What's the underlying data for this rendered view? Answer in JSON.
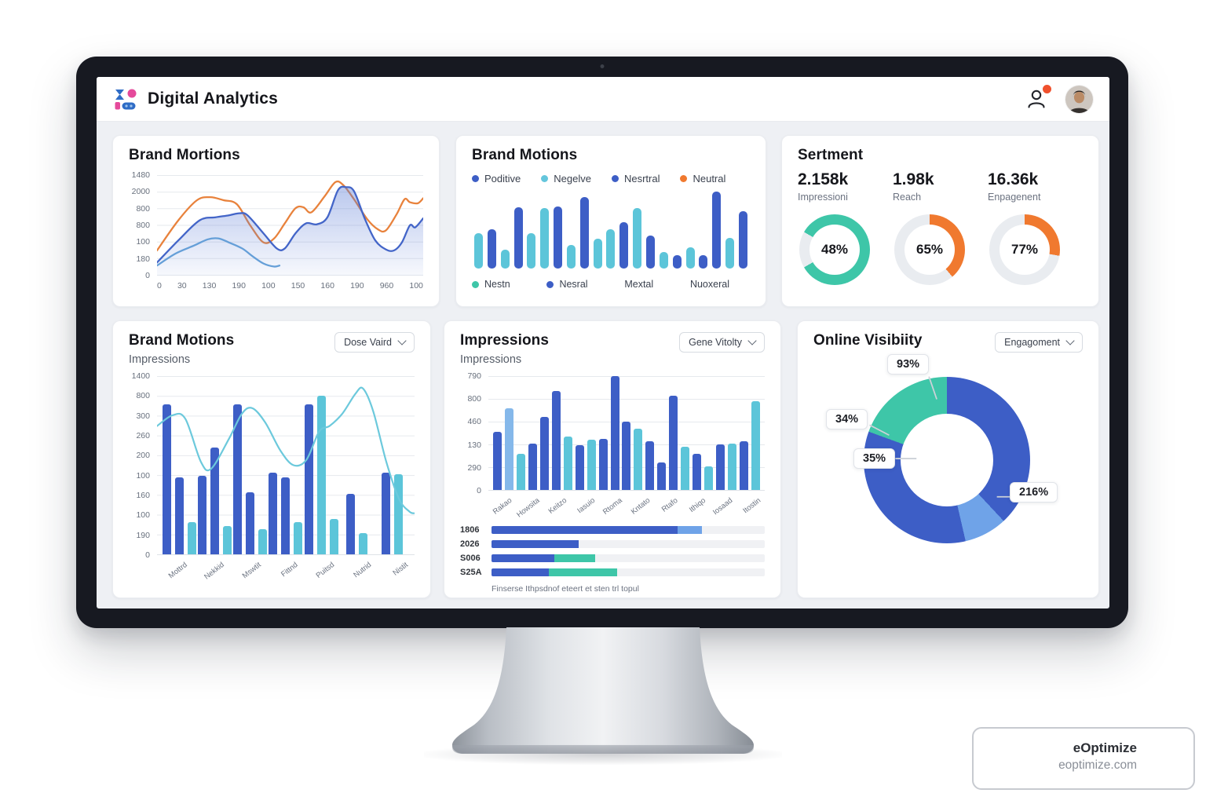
{
  "header": {
    "title": "Digital Analytics"
  },
  "badge": {
    "title": "eOptimize",
    "domain": "eoptimize.com"
  },
  "colors": {
    "royal_blue": "#3D5EC6",
    "light_blue": "#85B8EA",
    "cyan": "#5CC5D9",
    "teal": "#3EC6A8",
    "orange": "#F0792F",
    "track": "#E9ECF0",
    "grid": "#E6E9ED"
  },
  "chart_data": [
    {
      "id": "brand_mentions_line",
      "type": "line",
      "title": "Brand Mortions",
      "y_ticks": [
        "1480",
        "2000",
        "800",
        "800",
        "100",
        "180",
        "0"
      ],
      "x_ticks": [
        "0",
        "30",
        "130",
        "190",
        "100",
        "150",
        "160",
        "190",
        "960",
        "100"
      ],
      "ylim": [
        0,
        100
      ],
      "grid": true,
      "legend_position": "none",
      "series": [
        {
          "name": "neutral-orange",
          "color": "#E8823C",
          "points": [
            [
              0,
              25
            ],
            [
              8,
              55
            ],
            [
              15,
              75
            ],
            [
              20,
              78
            ],
            [
              25,
              75
            ],
            [
              30,
              71
            ],
            [
              35,
              50
            ],
            [
              40,
              33
            ],
            [
              44,
              37
            ],
            [
              48,
              52
            ],
            [
              52,
              67
            ],
            [
              55,
              68
            ],
            [
              58,
              63
            ],
            [
              63,
              79
            ],
            [
              67,
              93
            ],
            [
              70,
              90
            ],
            [
              74,
              76
            ],
            [
              79,
              56
            ],
            [
              83,
              46
            ],
            [
              86,
              45
            ],
            [
              90,
              61
            ],
            [
              93,
              76
            ],
            [
              95,
              73
            ],
            [
              98,
              72
            ],
            [
              100,
              77
            ]
          ]
        },
        {
          "name": "mentions-blue",
          "color": "#4365C8",
          "area": true,
          "points": [
            [
              0,
              13
            ],
            [
              8,
              35
            ],
            [
              16,
              55
            ],
            [
              22,
              58
            ],
            [
              27,
              60
            ],
            [
              31,
              62
            ],
            [
              34,
              60
            ],
            [
              40,
              42
            ],
            [
              45,
              27
            ],
            [
              48,
              27
            ],
            [
              52,
              42
            ],
            [
              56,
              52
            ],
            [
              60,
              51
            ],
            [
              64,
              58
            ],
            [
              68,
              85
            ],
            [
              71,
              88
            ],
            [
              74,
              84
            ],
            [
              78,
              57
            ],
            [
              82,
              35
            ],
            [
              86,
              26
            ],
            [
              89,
              25
            ],
            [
              92,
              33
            ],
            [
              95,
              50
            ],
            [
              97,
              48
            ],
            [
              100,
              57
            ]
          ]
        },
        {
          "name": "reach-lightblue",
          "color": "#659FD8",
          "points": [
            [
              0,
              10
            ],
            [
              7,
              22
            ],
            [
              14,
              30
            ],
            [
              19,
              36
            ],
            [
              23,
              37
            ],
            [
              27,
              33
            ],
            [
              32,
              27
            ],
            [
              36,
              19
            ],
            [
              40,
              12
            ],
            [
              44,
              9
            ],
            [
              46,
              10
            ]
          ]
        }
      ]
    },
    {
      "id": "brand_motions_bars",
      "type": "bar",
      "title": "Brand Motions",
      "legend": [
        {
          "label": "Poditive",
          "color": "#3D5EC6"
        },
        {
          "label": "Negelve",
          "color": "#64C6DC"
        },
        {
          "label": "Nesrtral",
          "color": "#3D5EC6"
        },
        {
          "label": "Neutral",
          "color": "#F0792F"
        }
      ],
      "values_pct": [
        46,
        51,
        24,
        80,
        46,
        79,
        81,
        31,
        93,
        39,
        51,
        60,
        79,
        43,
        21,
        17,
        28,
        17,
        100,
        40,
        75
      ],
      "bar_colors": [
        "c",
        "b",
        "c",
        "b",
        "c",
        "c",
        "b",
        "c",
        "b",
        "c",
        "c",
        "b",
        "c",
        "b",
        "c",
        "b",
        "c",
        "b",
        "b",
        "c",
        "b"
      ],
      "footer": [
        {
          "label": "Nestn",
          "dot": "#3EC6A8"
        },
        {
          "label": "Nesral",
          "dot": "#3D5EC6"
        },
        {
          "label": "Mextal",
          "dot": ""
        },
        {
          "label": "Nuoxeral",
          "dot": ""
        }
      ]
    },
    {
      "id": "sentiment_gauges",
      "type": "gauge",
      "title": "Sertment",
      "items": [
        {
          "value": "2.158k",
          "label": "Impressioni",
          "pct": "48%",
          "color": "#3EC6A8",
          "from_deg": -60,
          "sweep_deg": 300
        },
        {
          "value": "1.98k",
          "label": "Reach",
          "pct": "65%",
          "color": "#F0792F",
          "from_deg": 0,
          "sweep_deg": 140
        },
        {
          "value": "16.36k",
          "label": "Enpagenent",
          "pct": "77%",
          "color": "#F0792F",
          "from_deg": 0,
          "sweep_deg": 100
        }
      ]
    },
    {
      "id": "impressions_combo",
      "type": "combo_bar_line",
      "title": "Brand Motions",
      "subtitle": "Impressions",
      "dropdown": "Dose Vaird",
      "y_ticks": [
        "1400",
        "800",
        "300",
        "260",
        "200",
        "100",
        "160",
        "100",
        "190",
        "0"
      ],
      "x_ticks": [
        "Mottrd",
        "Nekkid",
        "Mswtit",
        "Fittnd",
        "Puitsd",
        "Nutrid",
        "Nistit"
      ],
      "groups": [
        [
          {
            "c": "b",
            "v": 84
          },
          {
            "c": "b",
            "v": 43
          },
          {
            "c": "c",
            "v": 18
          }
        ],
        [
          {
            "c": "b",
            "v": 44
          },
          {
            "c": "b",
            "v": 60
          },
          {
            "c": "c",
            "v": 16
          }
        ],
        [
          {
            "c": "b",
            "v": 84
          },
          {
            "c": "b",
            "v": 35
          },
          {
            "c": "c",
            "v": 14
          }
        ],
        [
          {
            "c": "b",
            "v": 46
          },
          {
            "c": "b",
            "v": 43
          },
          {
            "c": "c",
            "v": 18
          }
        ],
        [
          {
            "c": "b",
            "v": 84
          },
          {
            "c": "c",
            "v": 89
          },
          {
            "c": "c",
            "v": 20
          }
        ],
        [
          {
            "c": "b",
            "v": 34
          },
          {
            "c": "c",
            "v": 12
          }
        ],
        [
          {
            "c": "b",
            "v": 46
          },
          {
            "c": "c",
            "v": 45
          }
        ]
      ],
      "line": {
        "name": "trend-cyan",
        "color": "#6CC9DC",
        "points": [
          [
            0,
            72
          ],
          [
            6,
            78
          ],
          [
            11,
            76
          ],
          [
            17,
            52
          ],
          [
            21,
            48
          ],
          [
            28,
            65
          ],
          [
            33,
            79
          ],
          [
            37,
            82
          ],
          [
            42,
            74
          ],
          [
            48,
            58
          ],
          [
            53,
            50
          ],
          [
            58,
            53
          ],
          [
            63,
            69
          ],
          [
            67,
            72
          ],
          [
            72,
            79
          ],
          [
            77,
            90
          ],
          [
            80,
            93
          ],
          [
            84,
            80
          ],
          [
            89,
            52
          ],
          [
            94,
            31
          ],
          [
            98,
            24
          ],
          [
            100,
            23
          ]
        ]
      }
    },
    {
      "id": "impressions_bars",
      "type": "bar",
      "title": "Impressions",
      "subtitle": "Impressions",
      "dropdown": "Gene Vitolty",
      "y_ticks": [
        "790",
        "800",
        "460",
        "130",
        "290",
        "0"
      ],
      "x_ticks": [
        "Rakao",
        "Howsita",
        "Keitzo",
        "Iasuio",
        "Rtoma",
        "Kntato",
        "Rtafo",
        "Ithiqo",
        "Iosaad",
        "Itostin"
      ],
      "values_pct": [
        51,
        72,
        32,
        41,
        64,
        87,
        47,
        39,
        44,
        45,
        100,
        60,
        54,
        43,
        24,
        83,
        38,
        32,
        21,
        40,
        41,
        43,
        78
      ],
      "bar_colors": [
        "b",
        "lb",
        "c",
        "b",
        "b",
        "b",
        "c",
        "b",
        "c",
        "b",
        "b",
        "b",
        "c",
        "b",
        "b",
        "b",
        "c",
        "b",
        "c",
        "b",
        "c",
        "b",
        "c"
      ],
      "hbars": {
        "rows": [
          {
            "label": "1806",
            "segments": [
              {
                "color": "#3D5EC6",
                "pct": 68
              },
              {
                "color": "#6FA3E8",
                "pct": 9
              }
            ]
          },
          {
            "label": "2026",
            "segments": [
              {
                "color": "#3D5EC6",
                "pct": 32
              }
            ]
          },
          {
            "label": "S006",
            "segments": [
              {
                "color": "#3D5EC6",
                "pct": 23
              },
              {
                "color": "#3EC6A8",
                "pct": 15
              }
            ]
          },
          {
            "label": "S25A",
            "segments": [
              {
                "color": "#3D5EC6",
                "pct": 21
              },
              {
                "color": "#3EC6A8",
                "pct": 25
              }
            ]
          }
        ],
        "caption": "Finserse Ithpsdnof eteert et sten trl topul"
      }
    },
    {
      "id": "visibility_donut",
      "type": "donut",
      "title": "Online Visibiity",
      "dropdown": "Engagoment",
      "segments": [
        {
          "name": "primary-blue",
          "color": "#3D5EC6",
          "deg": 137
        },
        {
          "name": "light-blue",
          "color": "#6FA3E8",
          "deg": 30
        },
        {
          "name": "primary-blue-2",
          "color": "#3D5EC6",
          "deg": 123
        },
        {
          "name": "teal",
          "color": "#3EC6A8",
          "deg": 70
        }
      ],
      "callouts": [
        "93%",
        "34%",
        "35%",
        "216%"
      ]
    }
  ]
}
